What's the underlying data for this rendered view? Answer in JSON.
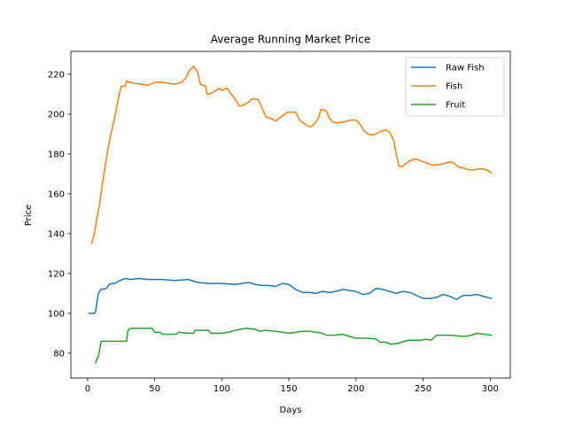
{
  "chart_data": {
    "type": "line",
    "title": "Average Running Market Price",
    "xlabel": "Days",
    "ylabel": "Price",
    "xlim": [
      -12.5,
      315
    ],
    "ylim": [
      67.5,
      231.5
    ],
    "xticks": [
      0,
      50,
      100,
      150,
      200,
      250,
      300
    ],
    "yticks": [
      80,
      100,
      120,
      140,
      160,
      180,
      200,
      220
    ],
    "grid": false,
    "legend_position": "top-right",
    "series": [
      {
        "name": "Raw Fish",
        "color": "#1f77b4",
        "points": [
          [
            1,
            100
          ],
          [
            5,
            100
          ],
          [
            6,
            101
          ],
          [
            7,
            106
          ],
          [
            8,
            110
          ],
          [
            10,
            112
          ],
          [
            14,
            112.5
          ],
          [
            16,
            114.5
          ],
          [
            18,
            115
          ],
          [
            20,
            115
          ],
          [
            24,
            116.5
          ],
          [
            28,
            117.5
          ],
          [
            32,
            117
          ],
          [
            38,
            117.5
          ],
          [
            45,
            117
          ],
          [
            55,
            117
          ],
          [
            65,
            116.5
          ],
          [
            75,
            117
          ],
          [
            82,
            115.5
          ],
          [
            90,
            115
          ],
          [
            100,
            115
          ],
          [
            110,
            114.5
          ],
          [
            115,
            115
          ],
          [
            120,
            115.5
          ],
          [
            125,
            114.5
          ],
          [
            130,
            114
          ],
          [
            135,
            114
          ],
          [
            140,
            113.5
          ],
          [
            145,
            115
          ],
          [
            150,
            114.5
          ],
          [
            155,
            112
          ],
          [
            160,
            110.5
          ],
          [
            165,
            110.5
          ],
          [
            170,
            110
          ],
          [
            175,
            111
          ],
          [
            180,
            110.5
          ],
          [
            185,
            111
          ],
          [
            190,
            112
          ],
          [
            195,
            111.5
          ],
          [
            200,
            111
          ],
          [
            205,
            109.5
          ],
          [
            210,
            110
          ],
          [
            215,
            112.5
          ],
          [
            220,
            112
          ],
          [
            225,
            111
          ],
          [
            230,
            110
          ],
          [
            235,
            111
          ],
          [
            240,
            110.5
          ],
          [
            245,
            109
          ],
          [
            250,
            107.5
          ],
          [
            255,
            107.5
          ],
          [
            260,
            108
          ],
          [
            265,
            109.5
          ],
          [
            270,
            108.5
          ],
          [
            275,
            107
          ],
          [
            280,
            109
          ],
          [
            285,
            109
          ],
          [
            290,
            109.5
          ],
          [
            295,
            108.5
          ],
          [
            301,
            107.5
          ]
        ]
      },
      {
        "name": "Fish",
        "color": "#ff7f0e",
        "points": [
          [
            3,
            135
          ],
          [
            5,
            140
          ],
          [
            7,
            148
          ],
          [
            9,
            155
          ],
          [
            11,
            165
          ],
          [
            14,
            178
          ],
          [
            17,
            189
          ],
          [
            20,
            198
          ],
          [
            23,
            208
          ],
          [
            25,
            214
          ],
          [
            28,
            214
          ],
          [
            29,
            216.5
          ],
          [
            31,
            216
          ],
          [
            35,
            215.5
          ],
          [
            40,
            215
          ],
          [
            45,
            214.5
          ],
          [
            50,
            216
          ],
          [
            55,
            216
          ],
          [
            60,
            215.5
          ],
          [
            65,
            215
          ],
          [
            70,
            216
          ],
          [
            73,
            218
          ],
          [
            76,
            222
          ],
          [
            79,
            224
          ],
          [
            82,
            221
          ],
          [
            84,
            215
          ],
          [
            88,
            214
          ],
          [
            89,
            210
          ],
          [
            92,
            210.5
          ],
          [
            95,
            211.5
          ],
          [
            98,
            213
          ],
          [
            100,
            212
          ],
          [
            104,
            213
          ],
          [
            107,
            210
          ],
          [
            110,
            207.5
          ],
          [
            113,
            204
          ],
          [
            116,
            204.5
          ],
          [
            120,
            206
          ],
          [
            122,
            207.5
          ],
          [
            127,
            207.5
          ],
          [
            130,
            203
          ],
          [
            133,
            198.5
          ],
          [
            136,
            198
          ],
          [
            140,
            196.5
          ],
          [
            145,
            199
          ],
          [
            149,
            201
          ],
          [
            155,
            201
          ],
          [
            158,
            197
          ],
          [
            162,
            195
          ],
          [
            166,
            193.5
          ],
          [
            169,
            195
          ],
          [
            172,
            198
          ],
          [
            174,
            202.5
          ],
          [
            178,
            201.5
          ],
          [
            180,
            198
          ],
          [
            183,
            196
          ],
          [
            186,
            195.5
          ],
          [
            190,
            196
          ],
          [
            193,
            196.5
          ],
          [
            196,
            197
          ],
          [
            200,
            197
          ],
          [
            203,
            195
          ],
          [
            206,
            191.5
          ],
          [
            209,
            190
          ],
          [
            213,
            189.5
          ],
          [
            216,
            190.5
          ],
          [
            219,
            191.5
          ],
          [
            222,
            192
          ],
          [
            225,
            191
          ],
          [
            228,
            187
          ],
          [
            230,
            180
          ],
          [
            232,
            174
          ],
          [
            234,
            173.5
          ],
          [
            237,
            175
          ],
          [
            240,
            176.5
          ],
          [
            244,
            177.5
          ],
          [
            247,
            177
          ],
          [
            250,
            176
          ],
          [
            253,
            175.5
          ],
          [
            256,
            174.5
          ],
          [
            260,
            174.5
          ],
          [
            265,
            175
          ],
          [
            270,
            176
          ],
          [
            273,
            175.5
          ],
          [
            276,
            173.5
          ],
          [
            280,
            173
          ],
          [
            284,
            172
          ],
          [
            288,
            172
          ],
          [
            292,
            172.5
          ],
          [
            295,
            172.5
          ],
          [
            299,
            171.5
          ],
          [
            301,
            170.5
          ]
        ]
      },
      {
        "name": "Fruit",
        "color": "#2ca02c",
        "points": [
          [
            6,
            75
          ],
          [
            7,
            77.5
          ],
          [
            8,
            78
          ],
          [
            9,
            82
          ],
          [
            10,
            86
          ],
          [
            14,
            86
          ],
          [
            20,
            86
          ],
          [
            25,
            86
          ],
          [
            29,
            86
          ],
          [
            30,
            91.5
          ],
          [
            32,
            92.5
          ],
          [
            40,
            92.5
          ],
          [
            48,
            92.5
          ],
          [
            50,
            90.5
          ],
          [
            54,
            90.5
          ],
          [
            56,
            89.5
          ],
          [
            60,
            89.5
          ],
          [
            66,
            89.5
          ],
          [
            68,
            90.5
          ],
          [
            75,
            90
          ],
          [
            79,
            90
          ],
          [
            80,
            91.5
          ],
          [
            85,
            91.5
          ],
          [
            90,
            91.5
          ],
          [
            92,
            90
          ],
          [
            100,
            90
          ],
          [
            105,
            90.5
          ],
          [
            110,
            91.5
          ],
          [
            114,
            92
          ],
          [
            118,
            92.5
          ],
          [
            125,
            92
          ],
          [
            128,
            91
          ],
          [
            132,
            91.5
          ],
          [
            140,
            91
          ],
          [
            145,
            90.5
          ],
          [
            150,
            90
          ],
          [
            156,
            90.5
          ],
          [
            160,
            91
          ],
          [
            165,
            91
          ],
          [
            170,
            90.5
          ],
          [
            175,
            90
          ],
          [
            178,
            89
          ],
          [
            183,
            89
          ],
          [
            190,
            89.5
          ],
          [
            195,
            88.5
          ],
          [
            200,
            87.5
          ],
          [
            205,
            87.5
          ],
          [
            210,
            87.5
          ],
          [
            215,
            87
          ],
          [
            218,
            85.5
          ],
          [
            222,
            85.5
          ],
          [
            226,
            84.5
          ],
          [
            232,
            85
          ],
          [
            236,
            86
          ],
          [
            240,
            86.5
          ],
          [
            248,
            86.5
          ],
          [
            252,
            87
          ],
          [
            256,
            86.5
          ],
          [
            260,
            89
          ],
          [
            265,
            89
          ],
          [
            270,
            89
          ],
          [
            278,
            88.5
          ],
          [
            282,
            88.5
          ],
          [
            286,
            89
          ],
          [
            290,
            90
          ],
          [
            296,
            89.5
          ],
          [
            301,
            89
          ]
        ]
      }
    ]
  }
}
